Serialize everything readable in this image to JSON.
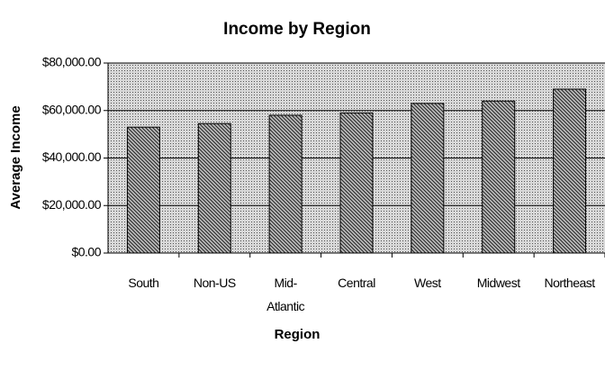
{
  "chart_data": {
    "type": "bar",
    "title": "Income by Region",
    "x_label": "Region",
    "y_label": "Average Income",
    "categories": [
      "South",
      "Non-US",
      "Mid-Atlantic",
      "Central",
      "West",
      "Midwest",
      "Northeast"
    ],
    "values": [
      53000,
      54500,
      58000,
      59000,
      63000,
      64000,
      69000
    ],
    "ylim": [
      0,
      80000
    ],
    "yticks": [
      {
        "value": 0,
        "label": "$0.00"
      },
      {
        "value": 20000,
        "label": "$20,000.00"
      },
      {
        "value": 40000,
        "label": "$40,000.00"
      },
      {
        "value": 60000,
        "label": "$60,000.00"
      },
      {
        "value": 80000,
        "label": "$80,000.00"
      }
    ],
    "grid": true
  }
}
